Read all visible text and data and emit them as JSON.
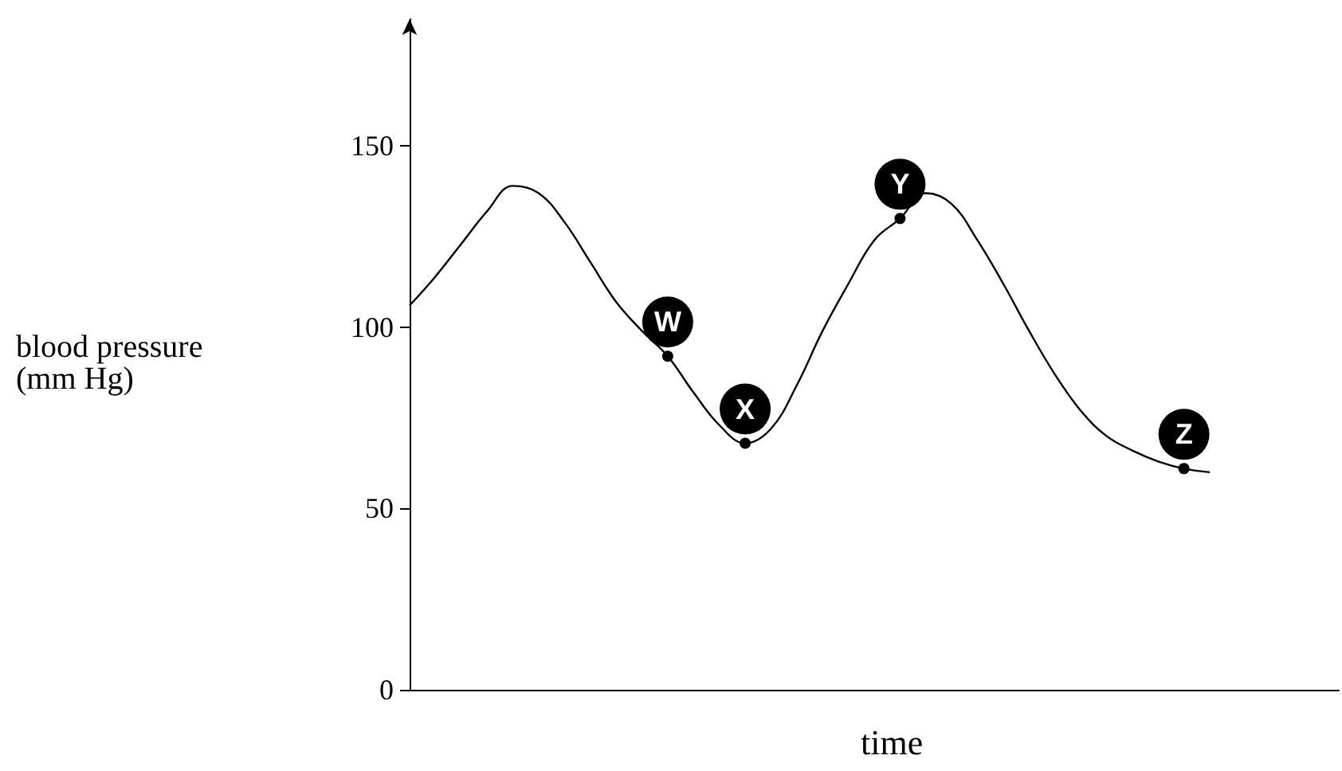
{
  "chart_data": {
    "type": "line",
    "xlabel": "time",
    "ylabel": "blood pressure\n(mm Hg)",
    "categories": [
      null,
      null,
      null,
      null,
      null,
      null,
      null,
      null,
      null,
      null,
      null,
      null,
      null,
      null,
      null,
      null,
      null,
      null,
      null,
      null,
      null,
      null,
      null,
      null,
      null,
      null,
      null,
      null,
      null,
      null,
      null,
      null,
      null,
      null,
      null,
      null,
      null
    ],
    "series": [
      {
        "color": "#000000",
        "values": [
          106,
          114,
          123,
          132,
          139,
          137,
          129,
          118,
          107,
          99,
          92,
          82,
          73,
          68,
          72,
          84,
          99,
          112,
          124,
          130,
          137,
          134,
          124,
          112,
          99,
          87,
          77,
          70,
          66,
          63,
          61,
          60,
          null,
          null,
          null,
          null,
          null
        ],
        "value_labels": [
          null,
          null,
          null,
          null,
          null,
          null,
          null,
          null,
          null,
          null,
          "W",
          null,
          null,
          "X",
          null,
          null,
          null,
          null,
          null,
          "Y",
          null,
          null,
          null,
          null,
          null,
          null,
          null,
          null,
          null,
          null,
          "Z",
          null,
          null,
          null,
          null,
          null,
          null
        ]
      }
    ],
    "ylim": [
      0,
      185
    ],
    "yticks": [
      0,
      50,
      100,
      150
    ],
    "tick_labels": "y",
    "grid": false
  }
}
